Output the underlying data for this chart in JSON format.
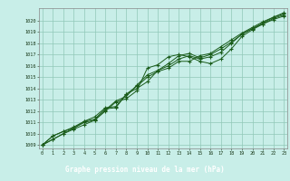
{
  "title": "Graphe pression niveau de la mer (hPa)",
  "xlabel_hours": [
    0,
    1,
    2,
    3,
    4,
    5,
    6,
    7,
    8,
    9,
    10,
    11,
    12,
    13,
    14,
    15,
    16,
    17,
    18,
    19,
    20,
    21,
    22,
    23
  ],
  "ylim_min": 1009,
  "ylim_max": 1021,
  "yticks": [
    1009,
    1010,
    1011,
    1012,
    1013,
    1014,
    1015,
    1016,
    1017,
    1018,
    1019,
    1020
  ],
  "lines": [
    [
      1009.0,
      1009.5,
      1010.0,
      1010.4,
      1010.8,
      1011.2,
      1012.0,
      1012.8,
      1013.1,
      1013.8,
      1015.8,
      1016.1,
      1016.8,
      1017.0,
      1016.8,
      1016.4,
      1016.2,
      1016.6,
      1017.5,
      1018.6,
      1019.2,
      1019.7,
      1020.2,
      1020.5
    ],
    [
      1009.0,
      1009.5,
      1010.0,
      1010.5,
      1011.0,
      1011.2,
      1012.1,
      1012.9,
      1013.3,
      1014.3,
      1015.2,
      1015.6,
      1016.0,
      1016.6,
      1016.9,
      1016.6,
      1016.8,
      1017.2,
      1018.0,
      1018.8,
      1019.3,
      1019.8,
      1020.3,
      1020.6
    ],
    [
      1009.0,
      1009.8,
      1010.2,
      1010.5,
      1011.1,
      1011.3,
      1012.2,
      1012.3,
      1013.5,
      1014.0,
      1014.6,
      1015.6,
      1016.2,
      1016.9,
      1017.1,
      1016.7,
      1017.0,
      1017.5,
      1018.1,
      1018.8,
      1019.3,
      1019.7,
      1020.1,
      1020.4
    ],
    [
      1009.0,
      1009.8,
      1010.2,
      1010.6,
      1011.1,
      1011.5,
      1012.3,
      1012.4,
      1013.5,
      1014.2,
      1015.0,
      1015.5,
      1015.8,
      1016.4,
      1016.4,
      1016.9,
      1017.1,
      1017.7,
      1018.3,
      1018.9,
      1019.4,
      1019.9,
      1020.3,
      1020.7
    ]
  ],
  "line_color": "#1a5c1a",
  "bg_color": "#c8eee8",
  "grid_color": "#90c8b8",
  "title_bg": "#2a6a2a",
  "title_color": "#ffffff",
  "tick_color": "#1a3a1a",
  "spine_color": "#888888"
}
